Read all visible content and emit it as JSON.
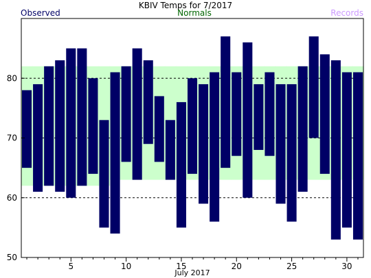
{
  "chart_data": {
    "type": "bar",
    "title": "KBIV Temps for 7/2017",
    "xlabel": "July 2017",
    "ylabel": "",
    "legend": {
      "observed": "Observed",
      "normals": "Normals",
      "records": "Records"
    },
    "colors": {
      "observed": "#000066",
      "normals": "#ccffcc",
      "normals_text": "#006600",
      "records_text": "#cc99ff"
    },
    "ylim": [
      50,
      90
    ],
    "yticks": [
      50,
      60,
      70,
      80
    ],
    "xticks": [
      5,
      10,
      15,
      20,
      25,
      30
    ],
    "grid_lines": [
      60,
      70,
      80
    ],
    "days": [
      1,
      2,
      3,
      4,
      5,
      6,
      7,
      8,
      9,
      10,
      11,
      12,
      13,
      14,
      15,
      16,
      17,
      18,
      19,
      20,
      21,
      22,
      23,
      24,
      25,
      26,
      27,
      28,
      29,
      30,
      31
    ],
    "observed_high": [
      78,
      79,
      82,
      83,
      85,
      85,
      80,
      73,
      81,
      82,
      85,
      83,
      77,
      73,
      76,
      80,
      79,
      81,
      87,
      81,
      86,
      79,
      81,
      79,
      79,
      82,
      87,
      84,
      83,
      81,
      81
    ],
    "observed_low": [
      65,
      61,
      62,
      61,
      60,
      62,
      64,
      55,
      54,
      66,
      63,
      69,
      66,
      63,
      55,
      64,
      59,
      56,
      65,
      67,
      60,
      68,
      67,
      59,
      56,
      61,
      70,
      64,
      53,
      55,
      53
    ],
    "normal_high": [
      82,
      82,
      82,
      82,
      82,
      82,
      82,
      82,
      82,
      82,
      82,
      82,
      82,
      82,
      82,
      82,
      82,
      82,
      82,
      82,
      82,
      82,
      82,
      82,
      82,
      82,
      82,
      82,
      82,
      82,
      82
    ],
    "normal_low": [
      62,
      62,
      62,
      62,
      62,
      62,
      62,
      62,
      63,
      63,
      63,
      63,
      63,
      63,
      63,
      63,
      63,
      63,
      63,
      63,
      63,
      63,
      63,
      63,
      63,
      63,
      63,
      63,
      63,
      63,
      63
    ]
  }
}
